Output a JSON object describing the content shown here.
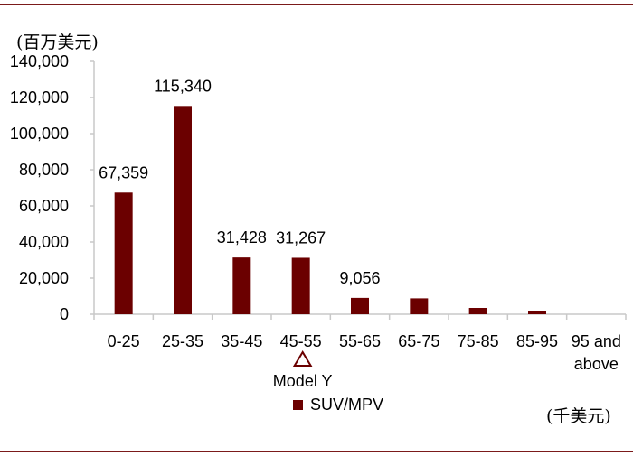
{
  "colors": {
    "bar": "#6b0000",
    "rule": "#7b1a1a",
    "axis": "#c8c8c8",
    "marker": "#6b0000"
  },
  "y_unit_label": "(百万美元)",
  "x_unit_label": "(千美元)",
  "marker": {
    "category": "45-55",
    "label": "Model Y",
    "shape": "triangle-outline"
  },
  "chart_data": {
    "type": "bar",
    "categories": [
      "0-25",
      "25-35",
      "35-45",
      "45-55",
      "55-65",
      "65-75",
      "75-85",
      "85-95",
      "95 and above"
    ],
    "category_lines": [
      [
        "0-25"
      ],
      [
        "25-35"
      ],
      [
        "35-45"
      ],
      [
        "45-55"
      ],
      [
        "55-65"
      ],
      [
        "65-75"
      ],
      [
        "75-85"
      ],
      [
        "85-95"
      ],
      [
        "95 and",
        "above"
      ]
    ],
    "series": [
      {
        "name": "SUV/MPV",
        "values": [
          67359,
          115340,
          31428,
          31267,
          9056,
          8800,
          3500,
          2000,
          0
        ]
      }
    ],
    "data_labels": [
      "67,359",
      "115,340",
      "31,428",
      "31,267",
      "9,056",
      "",
      "",
      "",
      ""
    ],
    "ylim": [
      0,
      140000
    ],
    "yticks": [
      0,
      20000,
      40000,
      60000,
      80000,
      100000,
      120000,
      140000
    ],
    "ytick_labels": [
      "0",
      "20,000",
      "40,000",
      "60,000",
      "80,000",
      "100,000",
      "120,000",
      "140,000"
    ],
    "title": "",
    "xlabel": "(千美元)",
    "ylabel": "(百万美元)",
    "legend": {
      "position": "bottom",
      "entries": [
        "SUV/MPV"
      ]
    },
    "grid": false
  }
}
